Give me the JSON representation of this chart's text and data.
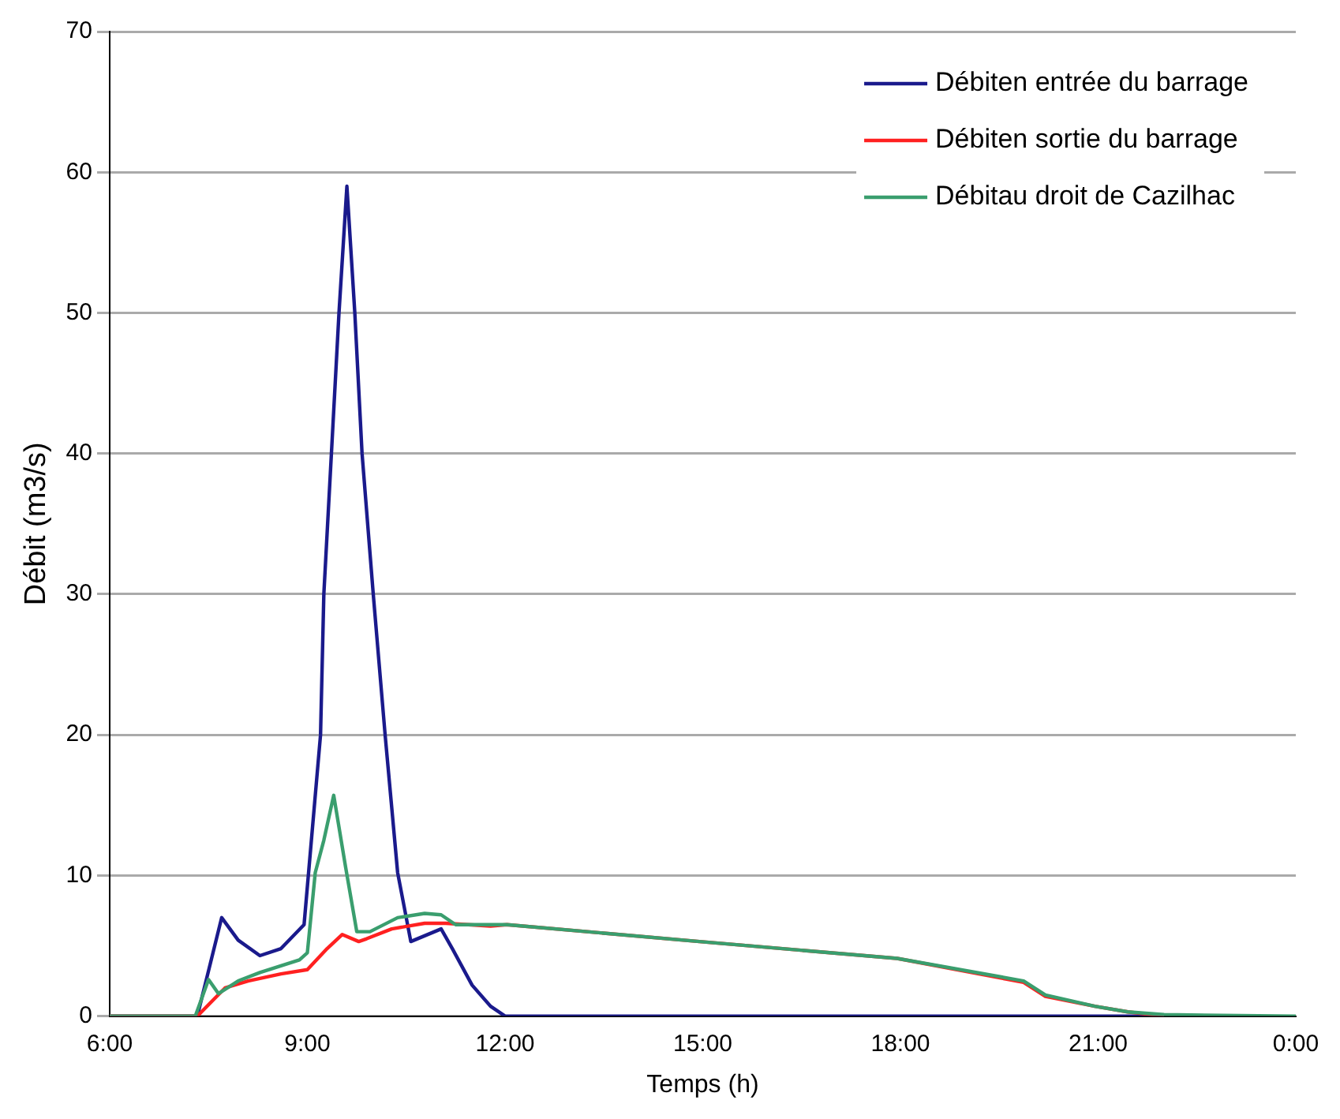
{
  "chart_data": {
    "type": "line",
    "xlabel": "Temps (h)",
    "ylabel": "Débit (m3/s)",
    "xlim": [
      6,
      24
    ],
    "xticks": [
      {
        "value": 6,
        "label": "6:00"
      },
      {
        "value": 9,
        "label": "9:00"
      },
      {
        "value": 12,
        "label": "12:00"
      },
      {
        "value": 15,
        "label": "15:00"
      },
      {
        "value": 18,
        "label": "18:00"
      },
      {
        "value": 21,
        "label": "21:00"
      },
      {
        "value": 24,
        "label": "0:00"
      }
    ],
    "ylim": [
      0,
      70
    ],
    "yticks": [
      0,
      10,
      20,
      30,
      40,
      50,
      60,
      70
    ],
    "grid": "y",
    "legend": "top right",
    "marker": "none",
    "line_style": "solid",
    "series": [
      {
        "name": "Débiten entrée du barrage",
        "color": "#1a1a8c",
        "x": [
          6,
          7.33,
          7.7,
          7.95,
          8.28,
          8.6,
          8.95,
          9.2,
          9.25,
          9.48,
          9.6,
          9.72,
          9.83,
          10.0,
          10.18,
          10.37,
          10.57,
          11.03,
          11.2,
          11.5,
          11.78,
          12.0,
          22.0
        ],
        "values": [
          0,
          0,
          7.0,
          5.4,
          4.3,
          4.8,
          6.5,
          20,
          30,
          50,
          59,
          50,
          40,
          30,
          20,
          10.2,
          5.3,
          6.2,
          4.8,
          2.2,
          0.7,
          0,
          0
        ]
      },
      {
        "name": "Débiten sortie du barrage",
        "color": "#ff2020",
        "x": [
          6,
          7.33,
          7.75,
          8.1,
          8.6,
          9.0,
          9.3,
          9.53,
          9.78,
          9.9,
          10.28,
          10.78,
          11.1,
          11.78,
          12.03,
          14.95,
          17.95,
          19.87,
          20.2,
          20.95,
          21.45,
          22.0
        ],
        "values": [
          0,
          0,
          2.0,
          2.5,
          3.0,
          3.3,
          4.8,
          5.8,
          5.3,
          5.5,
          6.2,
          6.6,
          6.6,
          6.4,
          6.5,
          5.3,
          4.1,
          2.4,
          1.4,
          0.7,
          0.3,
          0
        ]
      },
      {
        "name": "Débitau droit de Cazilhac",
        "color": "#3a9e6e",
        "x": [
          6,
          7.3,
          7.5,
          7.65,
          7.95,
          8.28,
          8.88,
          9.0,
          9.12,
          9.25,
          9.4,
          9.58,
          9.75,
          9.95,
          10.37,
          10.78,
          11.03,
          11.25,
          12.03,
          14.95,
          17.95,
          19.87,
          20.2,
          20.95,
          21.45,
          22.0,
          24
        ],
        "values": [
          0,
          0,
          2.6,
          1.6,
          2.5,
          3.1,
          4.0,
          4.5,
          10.2,
          12.5,
          15.7,
          10.6,
          6.0,
          6.0,
          7.0,
          7.3,
          7.2,
          6.5,
          6.5,
          5.3,
          4.1,
          2.5,
          1.5,
          0.7,
          0.3,
          0.1,
          0
        ]
      }
    ]
  }
}
